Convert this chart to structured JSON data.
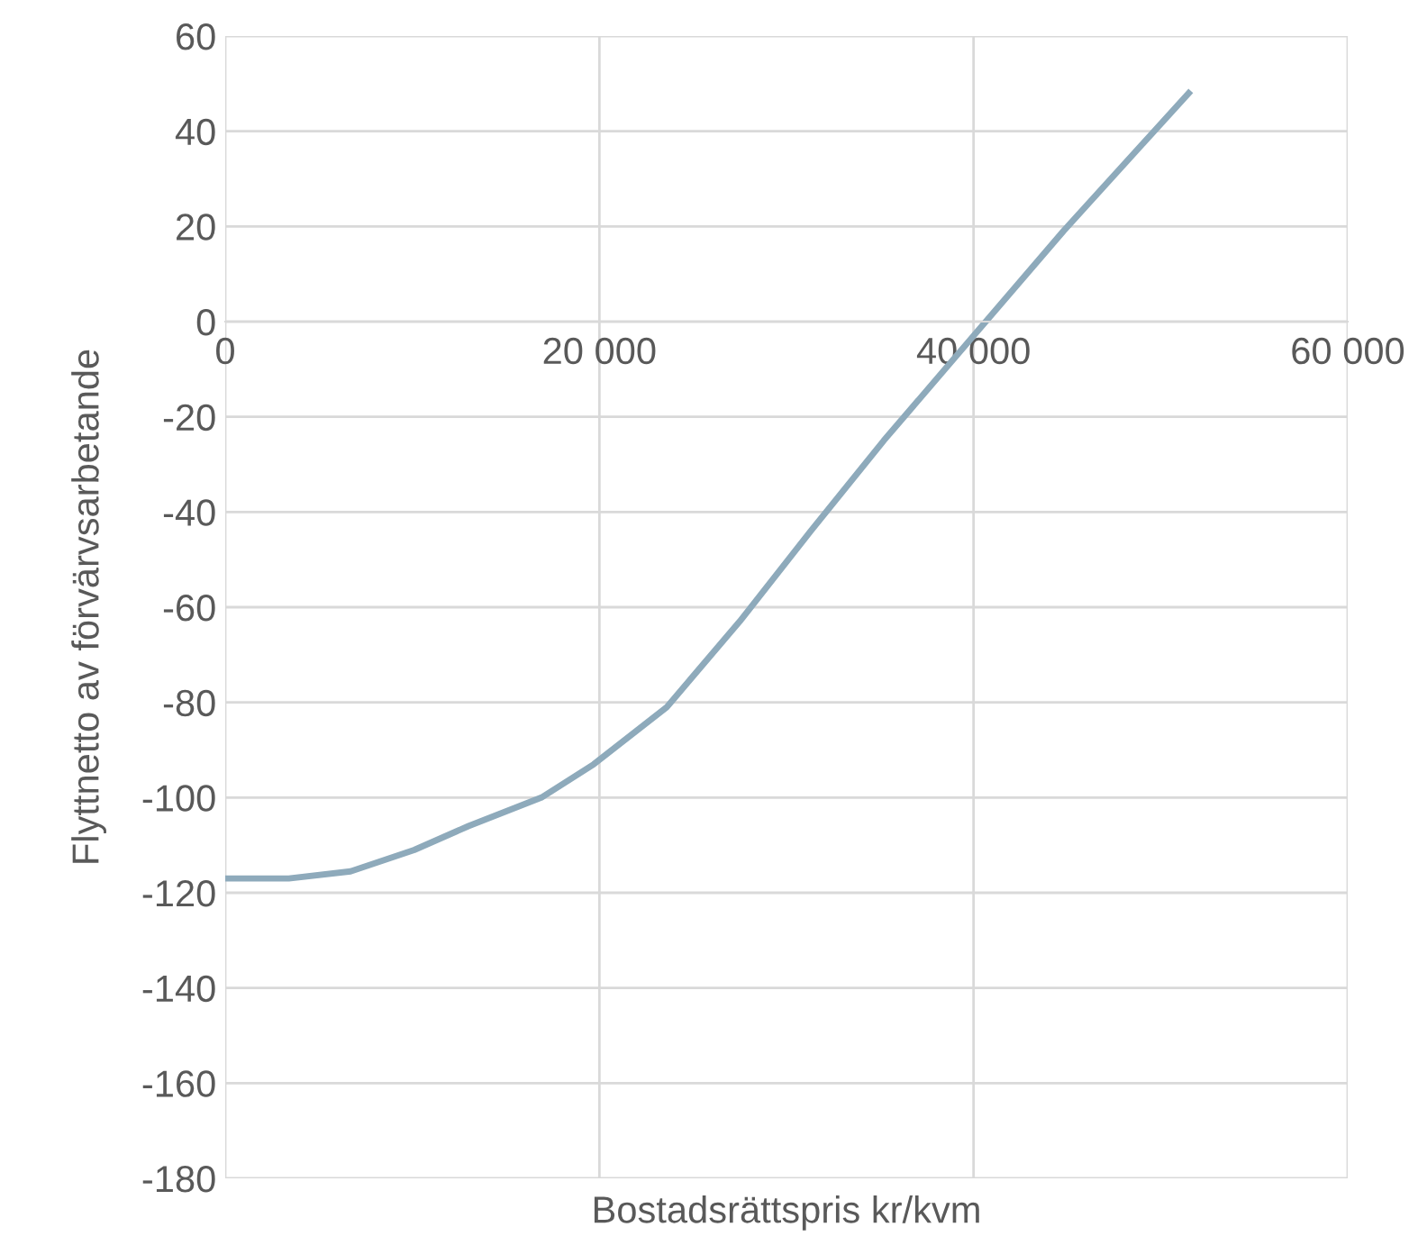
{
  "chart_data": {
    "type": "line",
    "xlabel": "Bostadsrättspris kr/kvm",
    "ylabel": "Flyttnetto av förvärvsarbetande",
    "x": [
      0,
      3400,
      6700,
      10100,
      13000,
      16900,
      19700,
      23600,
      27500,
      31300,
      35200,
      40000,
      44800,
      51500
    ],
    "series": [
      {
        "color": "#8eaabb",
        "values": [
          -117,
          -117,
          -115.5,
          -111,
          -106,
          -100,
          -93,
          -81,
          -63,
          -44,
          -25,
          -3,
          19,
          48
        ]
      }
    ],
    "xlim": [
      0,
      60000
    ],
    "xticks": [
      0,
      {
        "value": 20000,
        "label": "20 000"
      },
      {
        "value": 40000,
        "label": "40 000"
      },
      {
        "value": 60000,
        "label": "60 000"
      }
    ],
    "ylim": [
      -180,
      60
    ],
    "yticks": [
      -180,
      -160,
      -140,
      -120,
      -100,
      -80,
      -60,
      -40,
      -20,
      0,
      20,
      40,
      60
    ],
    "grid": true,
    "legend": false,
    "marker": "none",
    "line_style": "solid"
  }
}
